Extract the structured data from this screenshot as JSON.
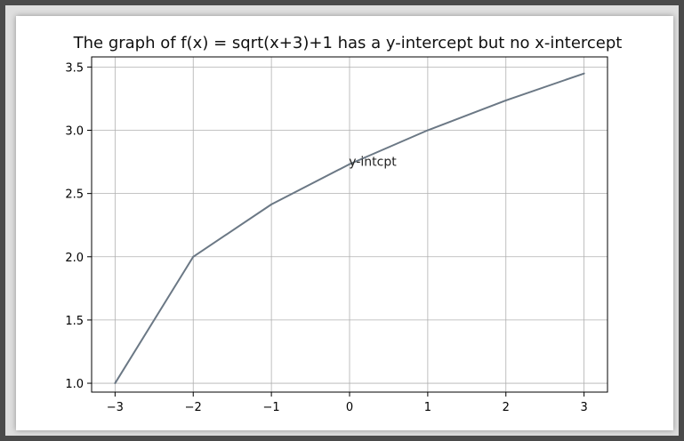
{
  "chart_data": {
    "type": "line",
    "title": "The graph of f(x) = sqrt(x+3)+1 has a y-intercept but no x-intercept",
    "xlabel": "",
    "ylabel": "",
    "x": [
      -3,
      -2,
      -1,
      0,
      1,
      2,
      3
    ],
    "series": [
      {
        "values": [
          1.0,
          2.0,
          2.414,
          2.732,
          3.0,
          3.236,
          3.449
        ]
      }
    ],
    "xlim": [
      -3.3,
      3.3
    ],
    "ylim": [
      0.93,
      3.58
    ],
    "xticks": [
      -3,
      -2,
      -1,
      0,
      1,
      2,
      3
    ],
    "xtick_labels": [
      "−3",
      "−2",
      "−1",
      "0",
      "1",
      "2",
      "3"
    ],
    "yticks": [
      1.0,
      1.5,
      2.0,
      2.5,
      3.0,
      3.5
    ],
    "ytick_labels": [
      "1.0",
      "1.5",
      "2.0",
      "2.5",
      "3.0",
      "3.5"
    ],
    "grid": true,
    "line_color": "#6b7885",
    "annotations": [
      {
        "text": "y-intcpt",
        "x": 0,
        "y": 2.732
      }
    ]
  }
}
